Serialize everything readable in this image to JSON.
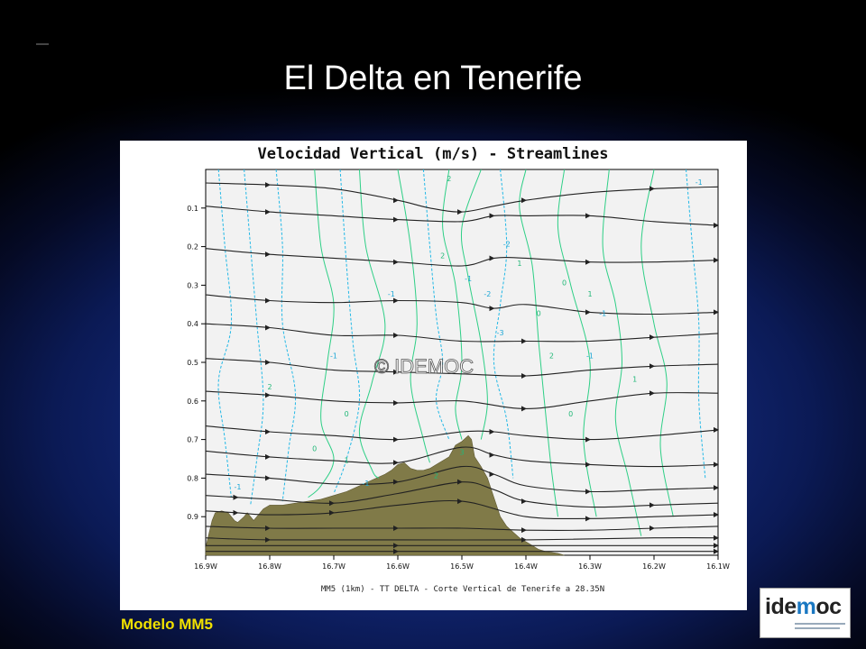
{
  "slide": {
    "title": "El Delta en Tenerife",
    "model_label": "Modelo MM5",
    "logo": {
      "pre": "ide",
      "mid": "m",
      "post": "oc"
    }
  },
  "chart_data": {
    "type": "contour",
    "title": "Velocidad Vertical (m/s) - Streamlines",
    "caption": "MM5 (1km) - TT DELTA - Corte Vertical de Tenerife a 28.35N",
    "watermark": "© IDEMOC",
    "xlim": [
      -16.9,
      -16.1
    ],
    "ylim": [
      1.0,
      0.0
    ],
    "x_ticks": [
      "16.9W",
      "16.8W",
      "16.7W",
      "16.6W",
      "16.5W",
      "16.4W",
      "16.3W",
      "16.2W",
      "16.1W"
    ],
    "x_tick_values": [
      -16.9,
      -16.8,
      -16.7,
      -16.6,
      -16.5,
      -16.4,
      -16.3,
      -16.2,
      -16.1
    ],
    "y_ticks": [
      "0.1",
      "0.2",
      "0.3",
      "0.4",
      "0.5",
      "0.6",
      "0.7",
      "0.8",
      "0.9"
    ],
    "y_tick_values": [
      0.1,
      0.2,
      0.3,
      0.4,
      0.5,
      0.6,
      0.7,
      0.8,
      0.9
    ],
    "terrain": {
      "color": "#807a48",
      "x": [
        -16.9,
        -16.89,
        -16.885,
        -16.875,
        -16.865,
        -16.855,
        -16.85,
        -16.84,
        -16.835,
        -16.825,
        -16.82,
        -16.81,
        -16.8,
        -16.78,
        -16.76,
        -16.74,
        -16.72,
        -16.7,
        -16.68,
        -16.66,
        -16.64,
        -16.62,
        -16.61,
        -16.6,
        -16.59,
        -16.58,
        -16.57,
        -16.56,
        -16.55,
        -16.54,
        -16.53,
        -16.52,
        -16.51,
        -16.5,
        -16.49,
        -16.485,
        -16.48,
        -16.47,
        -16.46,
        -16.45,
        -16.44,
        -16.43,
        -16.42,
        -16.41,
        -16.4,
        -16.39,
        -16.38,
        -16.37,
        -16.35,
        -16.34
      ],
      "y": [
        0.98,
        0.91,
        0.89,
        0.885,
        0.89,
        0.91,
        0.915,
        0.9,
        0.89,
        0.91,
        0.9,
        0.88,
        0.87,
        0.87,
        0.865,
        0.86,
        0.855,
        0.845,
        0.835,
        0.82,
        0.805,
        0.79,
        0.78,
        0.765,
        0.76,
        0.775,
        0.78,
        0.78,
        0.775,
        0.765,
        0.755,
        0.745,
        0.715,
        0.705,
        0.69,
        0.7,
        0.745,
        0.77,
        0.8,
        0.85,
        0.9,
        0.925,
        0.94,
        0.955,
        0.965,
        0.975,
        0.985,
        0.99,
        0.995,
        1.0
      ]
    },
    "streamlines": [
      {
        "x": [
          -16.9,
          -16.8,
          -16.7,
          -16.6,
          -16.55,
          -16.5,
          -16.45,
          -16.4,
          -16.3,
          -16.2,
          -16.1
        ],
        "y": [
          0.035,
          0.04,
          0.05,
          0.08,
          0.1,
          0.11,
          0.095,
          0.08,
          0.06,
          0.05,
          0.045
        ]
      },
      {
        "x": [
          -16.9,
          -16.8,
          -16.7,
          -16.6,
          -16.5,
          -16.45,
          -16.4,
          -16.3,
          -16.2,
          -16.1
        ],
        "y": [
          0.095,
          0.11,
          0.12,
          0.13,
          0.135,
          0.12,
          0.12,
          0.12,
          0.135,
          0.145
        ]
      },
      {
        "x": [
          -16.9,
          -16.8,
          -16.7,
          -16.6,
          -16.5,
          -16.45,
          -16.4,
          -16.3,
          -16.2,
          -16.1
        ],
        "y": [
          0.205,
          0.22,
          0.23,
          0.24,
          0.25,
          0.23,
          0.23,
          0.24,
          0.24,
          0.235
        ]
      },
      {
        "x": [
          -16.9,
          -16.8,
          -16.7,
          -16.6,
          -16.5,
          -16.45,
          -16.4,
          -16.3,
          -16.2,
          -16.1
        ],
        "y": [
          0.325,
          0.34,
          0.345,
          0.34,
          0.345,
          0.36,
          0.35,
          0.37,
          0.375,
          0.37
        ]
      },
      {
        "x": [
          -16.9,
          -16.8,
          -16.7,
          -16.6,
          -16.5,
          -16.4,
          -16.3,
          -16.2,
          -16.1
        ],
        "y": [
          0.4,
          0.41,
          0.43,
          0.43,
          0.445,
          0.445,
          0.445,
          0.435,
          0.425
        ]
      },
      {
        "x": [
          -16.9,
          -16.8,
          -16.7,
          -16.6,
          -16.5,
          -16.4,
          -16.3,
          -16.2,
          -16.1
        ],
        "y": [
          0.49,
          0.5,
          0.52,
          0.525,
          0.53,
          0.535,
          0.52,
          0.51,
          0.505
        ]
      },
      {
        "x": [
          -16.9,
          -16.8,
          -16.7,
          -16.6,
          -16.5,
          -16.4,
          -16.3,
          -16.2,
          -16.1
        ],
        "y": [
          0.575,
          0.585,
          0.6,
          0.605,
          0.6,
          0.62,
          0.6,
          0.58,
          0.58
        ]
      },
      {
        "x": [
          -16.9,
          -16.8,
          -16.7,
          -16.6,
          -16.5,
          -16.45,
          -16.4,
          -16.3,
          -16.2,
          -16.1
        ],
        "y": [
          0.665,
          0.68,
          0.69,
          0.7,
          0.68,
          0.68,
          0.69,
          0.7,
          0.69,
          0.675
        ]
      },
      {
        "x": [
          -16.9,
          -16.8,
          -16.7,
          -16.6,
          -16.5,
          -16.45,
          -16.4,
          -16.3,
          -16.2,
          -16.1
        ],
        "y": [
          0.73,
          0.745,
          0.755,
          0.76,
          0.72,
          0.74,
          0.755,
          0.765,
          0.77,
          0.765
        ]
      },
      {
        "x": [
          -16.9,
          -16.8,
          -16.7,
          -16.6,
          -16.5,
          -16.45,
          -16.4,
          -16.3,
          -16.2,
          -16.1
        ],
        "y": [
          0.79,
          0.8,
          0.815,
          0.81,
          0.77,
          0.79,
          0.82,
          0.835,
          0.83,
          0.825
        ]
      },
      {
        "x": [
          -16.9,
          -16.85,
          -16.8,
          -16.7,
          -16.6,
          -16.5,
          -16.45,
          -16.4,
          -16.3,
          -16.2,
          -16.1
        ],
        "y": [
          0.845,
          0.85,
          0.855,
          0.865,
          0.84,
          0.81,
          0.83,
          0.86,
          0.875,
          0.87,
          0.865
        ]
      },
      {
        "x": [
          -16.9,
          -16.85,
          -16.8,
          -16.7,
          -16.6,
          -16.5,
          -16.4,
          -16.3,
          -16.2,
          -16.1
        ],
        "y": [
          0.885,
          0.89,
          0.895,
          0.89,
          0.87,
          0.86,
          0.9,
          0.905,
          0.9,
          0.895
        ]
      },
      {
        "x": [
          -16.9,
          -16.8,
          -16.7,
          -16.6,
          -16.5,
          -16.4,
          -16.3,
          -16.2,
          -16.1
        ],
        "y": [
          0.925,
          0.93,
          0.93,
          0.93,
          0.93,
          0.935,
          0.935,
          0.93,
          0.925
        ]
      },
      {
        "x": [
          -16.9,
          -16.8,
          -16.6,
          -16.4,
          -16.2,
          -16.1
        ],
        "y": [
          0.955,
          0.96,
          0.96,
          0.96,
          0.955,
          0.955
        ]
      },
      {
        "x": [
          -16.9,
          -16.6,
          -16.3,
          -16.1
        ],
        "y": [
          0.975,
          0.975,
          0.975,
          0.975
        ]
      },
      {
        "x": [
          -16.9,
          -16.6,
          -16.3,
          -16.1
        ],
        "y": [
          0.99,
          0.99,
          0.99,
          0.99
        ]
      }
    ],
    "contours_positive": [
      {
        "x": [
          -16.73,
          -16.72,
          -16.7,
          -16.71,
          -16.72,
          -16.7,
          -16.72,
          -16.74
        ],
        "y": [
          0.0,
          0.2,
          0.35,
          0.5,
          0.65,
          0.75,
          0.82,
          0.85
        ]
      },
      {
        "x": [
          -16.66,
          -16.65,
          -16.62,
          -16.64,
          -16.66,
          -16.64,
          -16.63
        ],
        "y": [
          0.0,
          0.2,
          0.4,
          0.55,
          0.68,
          0.78,
          0.8
        ]
      },
      {
        "x": [
          -16.6,
          -16.58,
          -16.57,
          -16.58,
          -16.56,
          -16.55
        ],
        "y": [
          0.0,
          0.2,
          0.4,
          0.55,
          0.7,
          0.76
        ]
      },
      {
        "x": [
          -16.52,
          -16.53,
          -16.51,
          -16.5,
          -16.51,
          -16.5
        ],
        "y": [
          0.0,
          0.15,
          0.3,
          0.5,
          0.62,
          0.7
        ]
      },
      {
        "x": [
          -16.47,
          -16.5,
          -16.49,
          -16.47,
          -16.46,
          -16.47
        ],
        "y": [
          0.0,
          0.15,
          0.28,
          0.45,
          0.6,
          0.7
        ]
      },
      {
        "x": [
          -16.4,
          -16.41,
          -16.39,
          -16.38,
          -16.37,
          -16.36,
          -16.35
        ],
        "y": [
          0.0,
          0.1,
          0.25,
          0.45,
          0.62,
          0.78,
          0.9
        ]
      },
      {
        "x": [
          -16.34,
          -16.35,
          -16.33,
          -16.3,
          -16.31,
          -16.29
        ],
        "y": [
          0.0,
          0.15,
          0.3,
          0.5,
          0.7,
          0.9
        ]
      },
      {
        "x": [
          -16.27,
          -16.28,
          -16.26,
          -16.25,
          -16.26,
          -16.24,
          -16.22
        ],
        "y": [
          0.0,
          0.2,
          0.35,
          0.5,
          0.65,
          0.8,
          0.95
        ]
      },
      {
        "x": [
          -16.2,
          -16.22,
          -16.2,
          -16.18,
          -16.19,
          -16.17
        ],
        "y": [
          0.0,
          0.2,
          0.4,
          0.55,
          0.72,
          0.9
        ]
      }
    ],
    "contours_negative": [
      {
        "x": [
          -16.88,
          -16.87,
          -16.86,
          -16.88,
          -16.87,
          -16.86
        ],
        "y": [
          0.0,
          0.2,
          0.4,
          0.55,
          0.7,
          0.85
        ]
      },
      {
        "x": [
          -16.84,
          -16.83,
          -16.82,
          -16.81,
          -16.82,
          -16.83
        ],
        "y": [
          0.0,
          0.2,
          0.4,
          0.6,
          0.75,
          0.87
        ]
      },
      {
        "x": [
          -16.79,
          -16.78,
          -16.78,
          -16.76,
          -16.77,
          -16.78
        ],
        "y": [
          0.0,
          0.2,
          0.4,
          0.58,
          0.72,
          0.86
        ]
      },
      {
        "x": [
          -16.69,
          -16.68,
          -16.67,
          -16.66,
          -16.68,
          -16.7
        ],
        "y": [
          0.0,
          0.25,
          0.45,
          0.6,
          0.75,
          0.84
        ]
      },
      {
        "x": [
          -16.56,
          -16.55,
          -16.54,
          -16.53,
          -16.54,
          -16.52
        ],
        "y": [
          0.0,
          0.2,
          0.38,
          0.5,
          0.6,
          0.7
        ]
      },
      {
        "x": [
          -16.44,
          -16.43,
          -16.44,
          -16.45,
          -16.43,
          -16.42
        ],
        "y": [
          0.0,
          0.2,
          0.35,
          0.5,
          0.65,
          0.8
        ]
      },
      {
        "x": [
          -16.15,
          -16.14,
          -16.13,
          -16.13,
          -16.12
        ],
        "y": [
          0.0,
          0.2,
          0.4,
          0.6,
          0.8
        ]
      }
    ],
    "contour_labels": [
      {
        "text": "2",
        "x": -16.52,
        "y": 0.03
      },
      {
        "text": "-1",
        "x": -16.13,
        "y": 0.04
      },
      {
        "text": "2",
        "x": -16.53,
        "y": 0.23
      },
      {
        "text": "1",
        "x": -16.41,
        "y": 0.25
      },
      {
        "text": "-2",
        "x": -16.43,
        "y": 0.2
      },
      {
        "text": "0",
        "x": -16.34,
        "y": 0.3
      },
      {
        "text": "-1",
        "x": -16.49,
        "y": 0.29
      },
      {
        "text": "-1",
        "x": -16.61,
        "y": 0.33
      },
      {
        "text": "-2",
        "x": -16.46,
        "y": 0.33
      },
      {
        "text": "1",
        "x": -16.3,
        "y": 0.33
      },
      {
        "text": "-1",
        "x": -16.28,
        "y": 0.38
      },
      {
        "text": "0",
        "x": -16.38,
        "y": 0.38
      },
      {
        "text": "-3",
        "x": -16.44,
        "y": 0.43
      },
      {
        "text": "-1",
        "x": -16.7,
        "y": 0.49
      },
      {
        "text": "-1",
        "x": -16.3,
        "y": 0.49
      },
      {
        "text": "2",
        "x": -16.36,
        "y": 0.49
      },
      {
        "text": "2",
        "x": -16.8,
        "y": 0.57
      },
      {
        "text": "1",
        "x": -16.23,
        "y": 0.55
      },
      {
        "text": "0",
        "x": -16.68,
        "y": 0.64
      },
      {
        "text": "0",
        "x": -16.33,
        "y": 0.64
      },
      {
        "text": "0",
        "x": -16.73,
        "y": 0.73
      },
      {
        "text": "1",
        "x": -16.68,
        "y": 0.76
      },
      {
        "text": "-1",
        "x": -16.65,
        "y": 0.82
      },
      {
        "text": "-1",
        "x": -16.85,
        "y": 0.83
      },
      {
        "text": "3",
        "x": -16.5,
        "y": 0.74
      },
      {
        "text": "2",
        "x": -16.54,
        "y": 0.8
      }
    ]
  }
}
